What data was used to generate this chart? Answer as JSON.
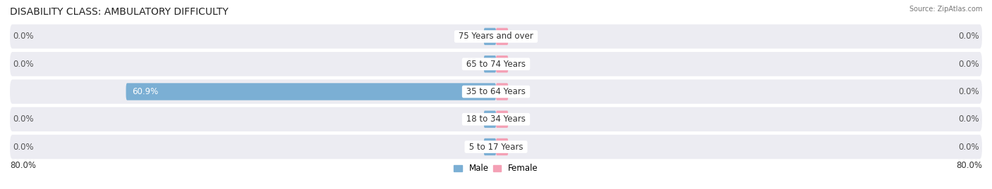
{
  "title": "DISABILITY CLASS: AMBULATORY DIFFICULTY",
  "source": "Source: ZipAtlas.com",
  "categories": [
    "5 to 17 Years",
    "18 to 34 Years",
    "35 to 64 Years",
    "65 to 74 Years",
    "75 Years and over"
  ],
  "male_values": [
    0.0,
    0.0,
    60.9,
    0.0,
    0.0
  ],
  "female_values": [
    0.0,
    0.0,
    0.0,
    0.0,
    0.0
  ],
  "male_color": "#7bafd4",
  "female_color": "#f4a0b5",
  "axis_max": 80.0,
  "x_left_label": "80.0%",
  "x_right_label": "80.0%",
  "title_fontsize": 10,
  "label_fontsize": 8.5,
  "category_fontsize": 8.5,
  "tick_fontsize": 8.5,
  "background_color": "#ffffff",
  "row_bg_color": "#ececf2"
}
